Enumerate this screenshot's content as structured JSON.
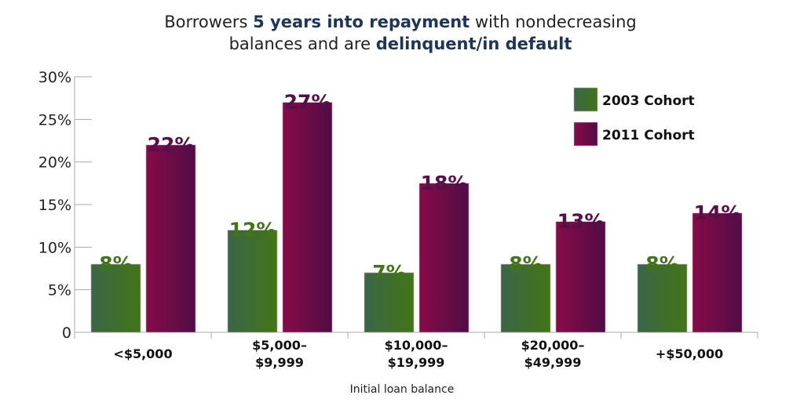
{
  "chart_data": {
    "type": "bar",
    "title_parts": [
      {
        "text": "Borrowers ",
        "bold": false
      },
      {
        "text": "5 years into repayment",
        "bold": true
      },
      {
        "text": " with nondecreasing",
        "bold": false
      },
      {
        "text": "balances and are ",
        "bold": false,
        "break_before": true
      },
      {
        "text": "delinquent/in default",
        "bold": true
      }
    ],
    "xlabel": "Initial loan balance",
    "ylabel": "",
    "ylim": [
      0,
      30
    ],
    "yticks": [
      0,
      5,
      10,
      15,
      20,
      25,
      30
    ],
    "ytick_labels": [
      "0",
      "5%",
      "10%",
      "15%",
      "20%",
      "25%",
      "30%"
    ],
    "categories": [
      [
        "<$5,000"
      ],
      [
        "$5,000–",
        "$9,999"
      ],
      [
        "$10,000–",
        "$19,999"
      ],
      [
        "$20,000–",
        "$49,999"
      ],
      [
        "+$50,000"
      ]
    ],
    "series": [
      {
        "name": "2003 Cohort",
        "values": [
          8,
          12,
          7,
          8,
          8
        ],
        "labels": [
          "8%",
          "12%",
          "7%",
          "8%",
          "8%"
        ],
        "color_start": "#3a6648",
        "color_end": "#427516",
        "label_color": "#427516"
      },
      {
        "name": "2011 Cohort",
        "values": [
          22,
          27,
          17.5,
          13,
          14
        ],
        "labels": [
          "22%",
          "27%",
          "18%",
          "13%",
          "14%"
        ],
        "color_start": "#860b48",
        "color_end": "#520c45",
        "label_color": "#55104a"
      }
    ],
    "legend_position": "top-right",
    "grid": false
  }
}
